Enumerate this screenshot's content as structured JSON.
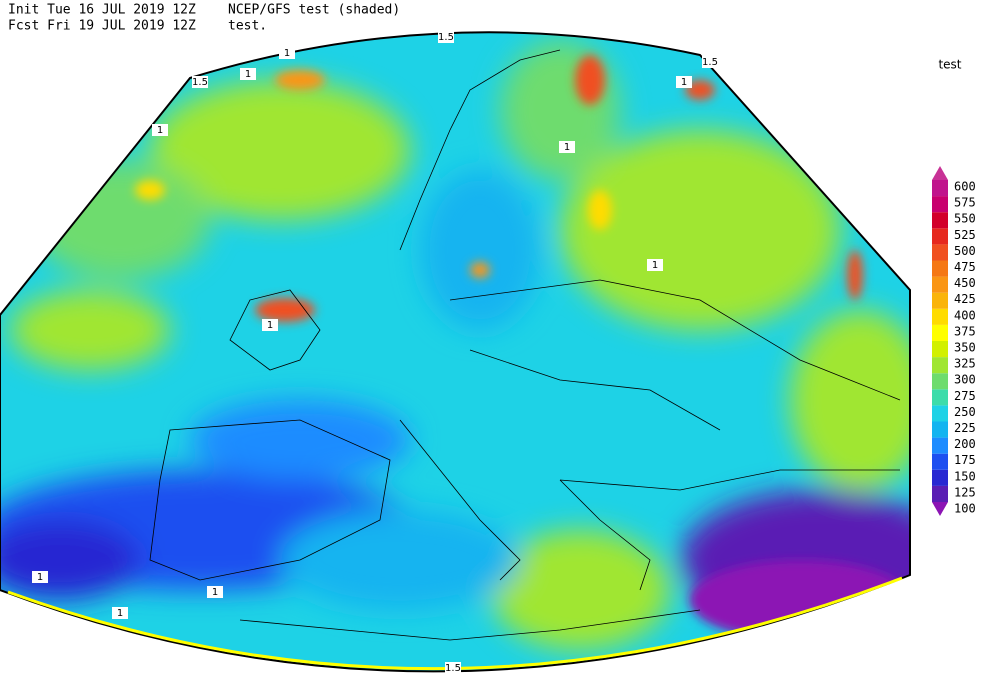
{
  "header": {
    "init": "Init  Tue 16 JUL 2019 12Z",
    "product": "NCEP/GFS test (shaded)",
    "forecast": "Fcst Fri 19 JUL 2019 12Z",
    "subtitle": "test."
  },
  "legend": {
    "title": "test",
    "levels": [
      100,
      125,
      150,
      175,
      200,
      225,
      250,
      275,
      300,
      325,
      350,
      375,
      400,
      425,
      450,
      475,
      500,
      525,
      550,
      575,
      600
    ],
    "colors": [
      "#8c14b4",
      "#5a1eb4",
      "#2828d2",
      "#1e50f0",
      "#1e8cff",
      "#14b4f0",
      "#1ed2e6",
      "#3cdcaa",
      "#6edc6e",
      "#a0e632",
      "#d2f000",
      "#ffff00",
      "#ffdc00",
      "#fab40a",
      "#fa9614",
      "#f57814",
      "#f05020",
      "#e6281e",
      "#d2002a",
      "#c8006e",
      "#c0148c",
      "#c83296"
    ]
  },
  "contour_labels": [
    "1.5",
    "1.5",
    "1",
    "1",
    "1",
    "1.5",
    "1",
    "1",
    "1",
    "1",
    "1",
    "1",
    "1",
    "1.5"
  ]
}
